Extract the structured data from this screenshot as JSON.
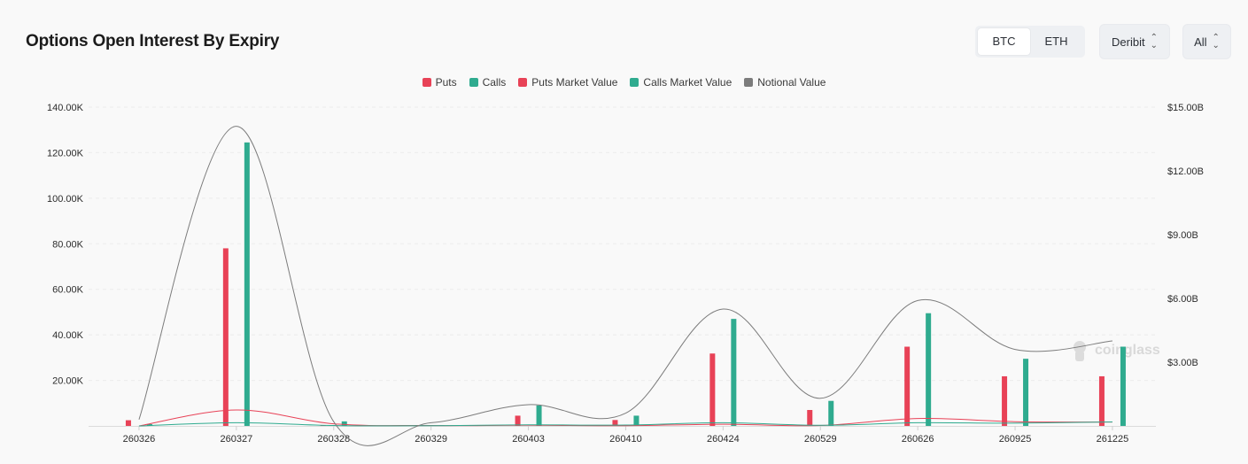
{
  "header": {
    "title": "Options Open Interest By Expiry"
  },
  "currency_toggle": {
    "options": [
      "BTC",
      "ETH"
    ],
    "active": "BTC"
  },
  "exchange_select": {
    "value": "Deribit"
  },
  "range_select": {
    "value": "All"
  },
  "watermark": {
    "text": "coinglass"
  },
  "chart_data": {
    "type": "bar",
    "title": "Options Open Interest By Expiry",
    "categories": [
      "260326",
      "260327",
      "260328",
      "260329",
      "260403",
      "260410",
      "260424",
      "260529",
      "260626",
      "260925",
      "261225"
    ],
    "left_axis": {
      "ylim": [
        0,
        140000
      ],
      "ticks": [
        "20.00K",
        "40.00K",
        "60.00K",
        "80.00K",
        "100.00K",
        "120.00K",
        "140.00K"
      ]
    },
    "right_axis": {
      "ylim": [
        0,
        15000000000
      ],
      "ticks": [
        "$3.00B",
        "$6.00B",
        "$9.00B",
        "$12.00B",
        "$15.00B"
      ]
    },
    "legend_position": "top-center",
    "grid": true,
    "series": [
      {
        "name": "Puts",
        "type": "bar",
        "axis": "left",
        "color": "#e84257",
        "values": [
          2500,
          78000,
          400,
          300,
          4500,
          2600,
          31800,
          7000,
          34800,
          21800,
          21800
        ]
      },
      {
        "name": "Calls",
        "type": "bar",
        "axis": "left",
        "color": "#2fab8f",
        "values": [
          800,
          124500,
          2000,
          300,
          9000,
          4500,
          47000,
          11000,
          49500,
          29500,
          34800
        ]
      },
      {
        "name": "Puts Market Value",
        "type": "line",
        "axis": "right",
        "color": "#e84257",
        "values": [
          0,
          750000000,
          100000000,
          20000000,
          30000000,
          10000000,
          80000000,
          20000000,
          350000000,
          200000000,
          180000000
        ]
      },
      {
        "name": "Calls Market Value",
        "type": "line",
        "axis": "right",
        "color": "#2fab8f",
        "values": [
          0,
          150000000,
          20000000,
          10000000,
          50000000,
          40000000,
          150000000,
          30000000,
          150000000,
          130000000,
          190000000
        ]
      },
      {
        "name": "Notional Value",
        "type": "line",
        "axis": "right",
        "color": "#7c7c7c",
        "values": [
          300000000,
          14100000000,
          200000000,
          150000000,
          1000000000,
          600000000,
          5500000000,
          1300000000,
          5900000000,
          3600000000,
          4000000000
        ]
      }
    ]
  }
}
